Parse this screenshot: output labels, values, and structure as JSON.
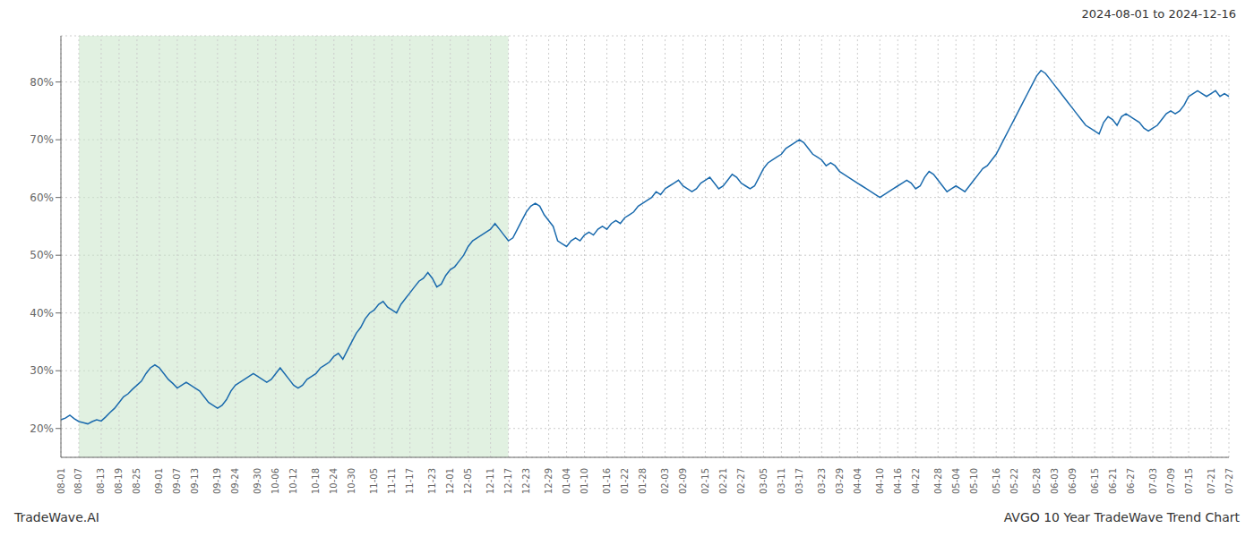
{
  "chart_data": {
    "type": "line",
    "title": "2024-08-01 to 2024-12-16",
    "annotations": [
      "TradeWave.AI",
      "AVGO 10 Year TradeWave Trend Chart"
    ],
    "categories": [
      "08-01",
      null,
      null,
      null,
      "08-07",
      null,
      null,
      null,
      null,
      "08-13",
      null,
      null,
      null,
      "08-19",
      null,
      null,
      null,
      "08-25",
      null,
      null,
      null,
      null,
      "09-01",
      null,
      null,
      null,
      "09-07",
      null,
      null,
      null,
      "09-13",
      null,
      null,
      null,
      null,
      "09-19",
      null,
      null,
      null,
      "09-24",
      null,
      null,
      null,
      null,
      "09-30",
      null,
      null,
      null,
      "10-06",
      null,
      null,
      null,
      "10-12",
      null,
      null,
      null,
      null,
      "10-18",
      null,
      null,
      null,
      "10-24",
      null,
      null,
      null,
      "10-30",
      null,
      null,
      null,
      null,
      "11-05",
      null,
      null,
      null,
      "11-11",
      null,
      null,
      null,
      "11-17",
      null,
      null,
      null,
      null,
      "11-23",
      null,
      null,
      null,
      "12-01",
      null,
      null,
      null,
      "12-05",
      null,
      null,
      null,
      null,
      "12-11",
      null,
      null,
      null,
      "12-17",
      null,
      null,
      null,
      "12-23",
      null,
      null,
      null,
      null,
      "12-29",
      null,
      null,
      null,
      "01-04",
      null,
      null,
      null,
      "01-10",
      null,
      null,
      null,
      null,
      "01-16",
      null,
      null,
      null,
      "01-22",
      null,
      null,
      null,
      "01-28",
      null,
      null,
      null,
      null,
      "02-03",
      null,
      null,
      null,
      "02-09",
      null,
      null,
      null,
      null,
      "02-15",
      null,
      null,
      null,
      "02-21",
      null,
      null,
      null,
      "02-27",
      null,
      null,
      null,
      null,
      "03-05",
      null,
      null,
      null,
      "03-11",
      null,
      null,
      null,
      "03-17",
      null,
      null,
      null,
      null,
      "03-23",
      null,
      null,
      null,
      "03-29",
      null,
      null,
      null,
      "04-04",
      null,
      null,
      null,
      null,
      "04-10",
      null,
      null,
      null,
      "04-16",
      null,
      null,
      null,
      "04-22",
      null,
      null,
      null,
      null,
      "04-28",
      null,
      null,
      null,
      "05-04",
      null,
      null,
      null,
      "05-10",
      null,
      null,
      null,
      null,
      "05-16",
      null,
      null,
      null,
      "05-22",
      null,
      null,
      null,
      null,
      "05-28",
      null,
      null,
      null,
      "06-03",
      null,
      null,
      null,
      "06-09",
      null,
      null,
      null,
      null,
      "06-15",
      null,
      null,
      null,
      "06-21",
      null,
      null,
      null,
      "06-27",
      null,
      null,
      null,
      null,
      "07-03",
      null,
      null,
      null,
      "07-09",
      null,
      null,
      null,
      "07-15",
      null,
      null,
      null,
      null,
      "07-21",
      null,
      null,
      null,
      "07-27"
    ],
    "values": [
      21.5,
      21.8,
      22.3,
      21.7,
      21.2,
      21.0,
      20.8,
      21.2,
      21.5,
      21.3,
      22.0,
      22.8,
      23.5,
      24.5,
      25.5,
      26.0,
      26.8,
      27.5,
      28.2,
      29.5,
      30.5,
      31.0,
      30.5,
      29.5,
      28.5,
      27.8,
      27.0,
      27.5,
      28.0,
      27.5,
      27.0,
      26.5,
      25.5,
      24.5,
      24.0,
      23.5,
      24.0,
      25.0,
      26.5,
      27.5,
      28.0,
      28.5,
      29.0,
      29.5,
      29.0,
      28.5,
      28.0,
      28.5,
      29.5,
      30.5,
      29.5,
      28.5,
      27.5,
      27.0,
      27.5,
      28.5,
      29.0,
      29.5,
      30.5,
      31.0,
      31.5,
      32.5,
      33.0,
      32.0,
      33.5,
      35.0,
      36.5,
      37.5,
      39.0,
      40.0,
      40.5,
      41.5,
      42.0,
      41.0,
      40.5,
      40.0,
      41.5,
      42.5,
      43.5,
      44.5,
      45.5,
      46.0,
      47.0,
      46.0,
      44.5,
      45.0,
      46.5,
      47.5,
      48.0,
      49.0,
      50.0,
      51.5,
      52.5,
      53.0,
      53.5,
      54.0,
      54.5,
      55.5,
      54.5,
      53.5,
      52.5,
      53.0,
      54.5,
      56.0,
      57.5,
      58.5,
      59.0,
      58.5,
      57.0,
      56.0,
      55.0,
      52.5,
      52.0,
      51.5,
      52.5,
      53.0,
      52.5,
      53.5,
      54.0,
      53.5,
      54.5,
      55.0,
      54.5,
      55.5,
      56.0,
      55.5,
      56.5,
      57.0,
      57.5,
      58.5,
      59.0,
      59.5,
      60.0,
      61.0,
      60.5,
      61.5,
      62.0,
      62.5,
      63.0,
      62.0,
      61.5,
      61.0,
      61.5,
      62.5,
      63.0,
      63.5,
      62.5,
      61.5,
      62.0,
      63.0,
      64.0,
      63.5,
      62.5,
      62.0,
      61.5,
      62.0,
      63.5,
      65.0,
      66.0,
      66.5,
      67.0,
      67.5,
      68.5,
      69.0,
      69.5,
      70.0,
      69.5,
      68.5,
      67.5,
      67.0,
      66.5,
      65.5,
      66.0,
      65.5,
      64.5,
      64.0,
      63.5,
      63.0,
      62.5,
      62.0,
      61.5,
      61.0,
      60.5,
      60.0,
      60.5,
      61.0,
      61.5,
      62.0,
      62.5,
      63.0,
      62.5,
      61.5,
      62.0,
      63.5,
      64.5,
      64.0,
      63.0,
      62.0,
      61.0,
      61.5,
      62.0,
      61.5,
      61.0,
      62.0,
      63.0,
      64.0,
      65.0,
      65.5,
      66.5,
      67.5,
      69.0,
      70.5,
      72.0,
      73.5,
      75.0,
      76.5,
      78.0,
      79.5,
      81.0,
      82.0,
      81.5,
      80.5,
      79.5,
      78.5,
      77.5,
      76.5,
      75.5,
      74.5,
      73.5,
      72.5,
      72.0,
      71.5,
      71.0,
      73.0,
      74.0,
      73.5,
      72.5,
      74.0,
      74.5,
      74.0,
      73.5,
      73.0,
      72.0,
      71.5,
      72.0,
      72.5,
      73.5,
      74.5,
      75.0,
      74.5,
      75.0,
      76.0,
      77.5,
      78.0,
      78.5,
      78.0,
      77.5,
      78.0,
      78.5,
      77.5,
      78.0,
      77.5
    ],
    "color": "#1a6aad",
    "shade": {
      "from": "08-07",
      "to": "12-17",
      "color": "#c8e6c9"
    },
    "ylim": [
      15,
      88
    ],
    "yticks": [
      {
        "value": 20,
        "label": "20%"
      },
      {
        "value": 30,
        "label": "30%"
      },
      {
        "value": 40,
        "label": "40%"
      },
      {
        "value": 50,
        "label": "50%"
      },
      {
        "value": 60,
        "label": "60%"
      },
      {
        "value": 70,
        "label": "70%"
      },
      {
        "value": 80,
        "label": "80%"
      }
    ],
    "grid": true
  }
}
